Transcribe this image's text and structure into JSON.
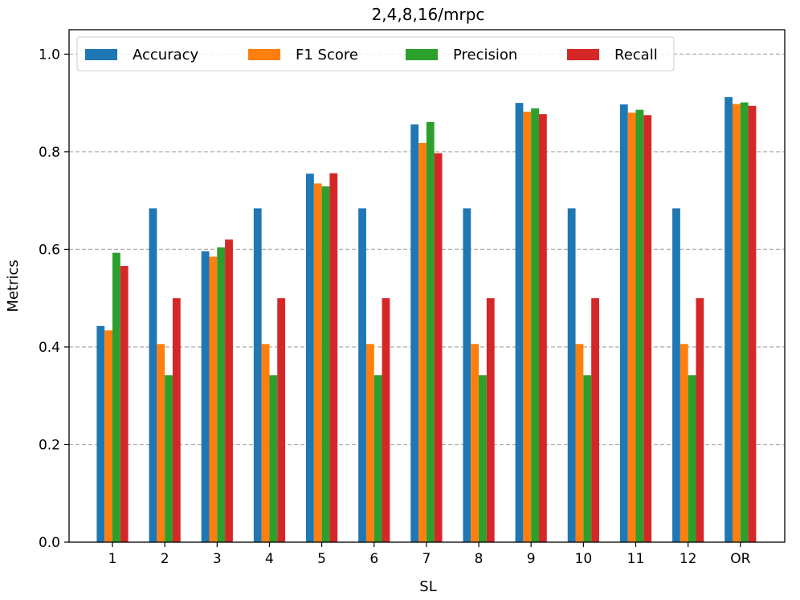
{
  "chart_data": {
    "type": "bar",
    "title": "2,4,8,16/mrpc",
    "xlabel": "SL",
    "ylabel": "Metrics",
    "ylim": [
      0,
      1.05
    ],
    "yticks": [
      "0.0",
      "0.2",
      "0.4",
      "0.6",
      "0.8",
      "1.0"
    ],
    "grid": "horizontal dashed",
    "legend_position": "top-left",
    "categories": [
      "1",
      "2",
      "3",
      "4",
      "5",
      "6",
      "7",
      "8",
      "9",
      "10",
      "11",
      "12",
      "OR"
    ],
    "series": [
      {
        "name": "Accuracy",
        "color": "#1f77b4",
        "values": [
          0.443,
          0.684,
          0.596,
          0.684,
          0.755,
          0.684,
          0.856,
          0.684,
          0.9,
          0.684,
          0.897,
          0.684,
          0.912
        ]
      },
      {
        "name": "F1 Score",
        "color": "#ff7f0e",
        "values": [
          0.434,
          0.406,
          0.585,
          0.406,
          0.735,
          0.406,
          0.818,
          0.406,
          0.882,
          0.406,
          0.88,
          0.406,
          0.898
        ]
      },
      {
        "name": "Precision",
        "color": "#2ca02c",
        "values": [
          0.593,
          0.342,
          0.604,
          0.342,
          0.729,
          0.342,
          0.861,
          0.342,
          0.889,
          0.342,
          0.886,
          0.342,
          0.901
        ]
      },
      {
        "name": "Recall",
        "color": "#d62728",
        "values": [
          0.566,
          0.5,
          0.62,
          0.5,
          0.756,
          0.5,
          0.797,
          0.5,
          0.877,
          0.5,
          0.875,
          0.5,
          0.894
        ]
      }
    ]
  }
}
